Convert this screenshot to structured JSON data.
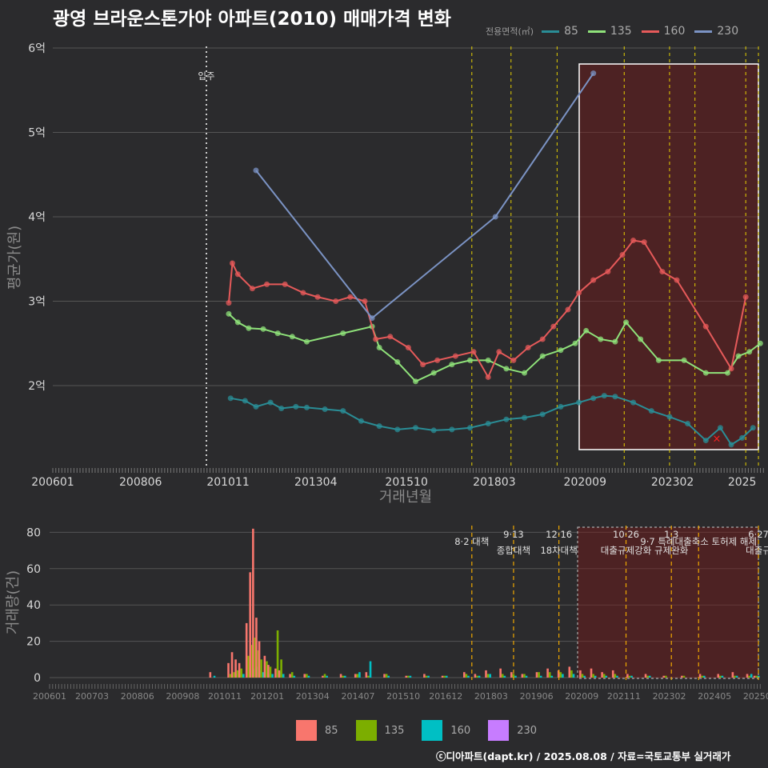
{
  "title": "광영 브라운스톤가야 아파트(2010) 매매가격 변화",
  "legend_title": "전용면적(㎡)",
  "series_colors": {
    "85": "#2a8d96",
    "135": "#8fe27a",
    "160": "#e65a5a",
    "230": "#7b93c4"
  },
  "volume_colors": {
    "85": "#f8766d",
    "135": "#7cae00",
    "160": "#00bfc4",
    "230": "#c77cff"
  },
  "move_in_label": "입주",
  "credit": "ⓒ디아파트(dapt.kr) / 2025.08.08 / 자료=국토교통부 실거래가",
  "chart_data": [
    {
      "type": "line",
      "xlabel": "거래년월",
      "ylabel": "평균가(원)",
      "y_ticks": [
        {
          "v": 2,
          "label": "2억"
        },
        {
          "v": 3,
          "label": "3억"
        },
        {
          "v": 4,
          "label": "4억"
        },
        {
          "v": 5,
          "label": "5억"
        },
        {
          "v": 6,
          "label": "6억"
        }
      ],
      "x_ticks": [
        {
          "t": 2006.0,
          "label": "200601"
        },
        {
          "t": 2008.42,
          "label": "200806"
        },
        {
          "t": 2010.83,
          "label": "201011"
        },
        {
          "t": 2013.25,
          "label": "201304"
        },
        {
          "t": 2015.75,
          "label": "201510"
        },
        {
          "t": 2018.17,
          "label": "201803"
        },
        {
          "t": 2020.67,
          "label": "202009"
        },
        {
          "t": 2023.08,
          "label": "202302"
        },
        {
          "t": 2025.0,
          "label": "2025"
        }
      ],
      "series": [
        {
          "name": "85",
          "line": [
            [
              2010.9,
              1.85
            ],
            [
              2011.3,
              1.82
            ],
            [
              2011.6,
              1.75
            ],
            [
              2012.0,
              1.8
            ],
            [
              2012.3,
              1.73
            ],
            [
              2012.7,
              1.75
            ],
            [
              2013.0,
              1.74
            ],
            [
              2013.5,
              1.72
            ],
            [
              2014.0,
              1.7
            ],
            [
              2014.5,
              1.58
            ],
            [
              2015.0,
              1.52
            ],
            [
              2015.5,
              1.48
            ],
            [
              2016.0,
              1.5
            ],
            [
              2016.5,
              1.47
            ],
            [
              2017.0,
              1.48
            ],
            [
              2017.5,
              1.5
            ],
            [
              2018.0,
              1.55
            ],
            [
              2018.5,
              1.6
            ],
            [
              2019.0,
              1.62
            ],
            [
              2019.5,
              1.66
            ],
            [
              2020.0,
              1.75
            ],
            [
              2020.5,
              1.8
            ],
            [
              2020.9,
              1.85
            ],
            [
              2021.2,
              1.88
            ],
            [
              2021.5,
              1.87
            ],
            [
              2022.0,
              1.8
            ],
            [
              2022.5,
              1.7
            ],
            [
              2023.0,
              1.63
            ],
            [
              2023.5,
              1.55
            ],
            [
              2024.0,
              1.35
            ],
            [
              2024.4,
              1.5
            ],
            [
              2024.7,
              1.3
            ],
            [
              2025.0,
              1.38
            ],
            [
              2025.3,
              1.5
            ]
          ]
        },
        {
          "name": "135",
          "line": [
            [
              2010.85,
              2.85
            ],
            [
              2011.1,
              2.75
            ],
            [
              2011.4,
              2.68
            ],
            [
              2011.8,
              2.67
            ],
            [
              2012.2,
              2.62
            ],
            [
              2012.6,
              2.58
            ],
            [
              2013.0,
              2.52
            ],
            [
              2014.0,
              2.62
            ],
            [
              2014.8,
              2.7
            ],
            [
              2015.0,
              2.45
            ],
            [
              2015.5,
              2.28
            ],
            [
              2016.0,
              2.05
            ],
            [
              2016.5,
              2.15
            ],
            [
              2017.0,
              2.25
            ],
            [
              2017.5,
              2.3
            ],
            [
              2018.0,
              2.3
            ],
            [
              2018.5,
              2.2
            ],
            [
              2019.0,
              2.15
            ],
            [
              2019.5,
              2.35
            ],
            [
              2020.0,
              2.42
            ],
            [
              2020.4,
              2.5
            ],
            [
              2020.7,
              2.65
            ],
            [
              2021.1,
              2.55
            ],
            [
              2021.5,
              2.52
            ],
            [
              2021.8,
              2.75
            ],
            [
              2022.2,
              2.55
            ],
            [
              2022.7,
              2.3
            ],
            [
              2023.4,
              2.3
            ],
            [
              2024.0,
              2.15
            ],
            [
              2024.6,
              2.15
            ],
            [
              2024.9,
              2.35
            ],
            [
              2025.2,
              2.4
            ],
            [
              2025.5,
              2.5
            ]
          ]
        },
        {
          "name": "160",
          "line": [
            [
              2010.85,
              2.98
            ],
            [
              2010.95,
              3.45
            ],
            [
              2011.1,
              3.32
            ],
            [
              2011.5,
              3.15
            ],
            [
              2011.9,
              3.2
            ],
            [
              2012.4,
              3.2
            ],
            [
              2012.9,
              3.1
            ],
            [
              2013.3,
              3.05
            ],
            [
              2013.8,
              3.0
            ],
            [
              2014.2,
              3.05
            ],
            [
              2014.6,
              3.0
            ],
            [
              2014.9,
              2.55
            ],
            [
              2015.3,
              2.58
            ],
            [
              2015.8,
              2.45
            ],
            [
              2016.2,
              2.25
            ],
            [
              2016.6,
              2.3
            ],
            [
              2017.1,
              2.35
            ],
            [
              2017.6,
              2.4
            ],
            [
              2018.0,
              2.1
            ],
            [
              2018.3,
              2.4
            ],
            [
              2018.7,
              2.3
            ],
            [
              2019.1,
              2.45
            ],
            [
              2019.5,
              2.55
            ],
            [
              2019.8,
              2.7
            ],
            [
              2020.2,
              2.9
            ],
            [
              2020.5,
              3.1
            ],
            [
              2020.9,
              3.25
            ],
            [
              2021.3,
              3.35
            ],
            [
              2021.7,
              3.55
            ],
            [
              2022.0,
              3.72
            ],
            [
              2022.3,
              3.7
            ],
            [
              2022.8,
              3.35
            ],
            [
              2023.2,
              3.25
            ],
            [
              2024.0,
              2.7
            ],
            [
              2024.7,
              2.2
            ],
            [
              2025.1,
              3.05
            ]
          ]
        },
        {
          "name": "230",
          "line": [
            [
              2011.6,
              4.55
            ],
            [
              2014.8,
              2.8
            ],
            [
              2018.2,
              4.0
            ],
            [
              2020.9,
              5.7
            ]
          ]
        }
      ],
      "highlight_mark": {
        "t": 2024.3,
        "v": 1.38,
        "symbol": "×"
      }
    },
    {
      "type": "bar",
      "ylabel": "거래량(건)",
      "y_ticks": [
        0,
        20,
        40,
        60,
        80
      ],
      "x_ticks": [
        {
          "t": 2006.0,
          "label": "200601"
        },
        {
          "t": 2007.17,
          "label": "200703"
        },
        {
          "t": 2008.42,
          "label": "200806"
        },
        {
          "t": 2009.67,
          "label": "200908"
        },
        {
          "t": 2010.83,
          "label": "201011"
        },
        {
          "t": 2012.0,
          "label": "201201"
        },
        {
          "t": 2013.25,
          "label": "201304"
        },
        {
          "t": 2014.5,
          "label": "201407"
        },
        {
          "t": 2015.75,
          "label": "201510"
        },
        {
          "t": 2016.92,
          "label": "201612"
        },
        {
          "t": 2018.17,
          "label": "201803"
        },
        {
          "t": 2019.42,
          "label": "201906"
        },
        {
          "t": 2020.67,
          "label": "202009"
        },
        {
          "t": 2021.83,
          "label": "202111"
        },
        {
          "t": 2023.08,
          "label": "202302"
        },
        {
          "t": 2024.33,
          "label": "202405"
        },
        {
          "t": 2025.5,
          "label": "20250"
        }
      ],
      "bars": [
        {
          "t": 2010.4,
          "v85": 3,
          "v135": 0,
          "v160": 1
        },
        {
          "t": 2010.9,
          "v85": 8,
          "v135": 2,
          "v160": 1
        },
        {
          "t": 2011.0,
          "v85": 14,
          "v135": 3,
          "v160": 2
        },
        {
          "t": 2011.1,
          "v85": 10,
          "v135": 4,
          "v160": 2
        },
        {
          "t": 2011.2,
          "v85": 8,
          "v135": 5,
          "v160": 2
        },
        {
          "t": 2011.4,
          "v85": 30,
          "v135": 12,
          "v160": 4
        },
        {
          "t": 2011.5,
          "v85": 58,
          "v135": 18,
          "v160": 5
        },
        {
          "t": 2011.58,
          "v85": 82,
          "v135": 22,
          "v160": 6
        },
        {
          "t": 2011.67,
          "v85": 33,
          "v135": 15,
          "v160": 4
        },
        {
          "t": 2011.75,
          "v85": 20,
          "v135": 10,
          "v160": 3
        },
        {
          "t": 2011.9,
          "v85": 12,
          "v135": 9,
          "v160": 2
        },
        {
          "t": 2012.0,
          "v85": 7,
          "v135": 6,
          "v160": 2
        },
        {
          "t": 2012.2,
          "v85": 5,
          "v135": 26,
          "v160": 3
        },
        {
          "t": 2012.3,
          "v85": 4,
          "v135": 10,
          "v160": 2
        },
        {
          "t": 2012.6,
          "v85": 2,
          "v135": 3,
          "v160": 1
        },
        {
          "t": 2013.0,
          "v85": 2,
          "v135": 2,
          "v160": 1
        },
        {
          "t": 2013.5,
          "v85": 1,
          "v135": 2,
          "v160": 1
        },
        {
          "t": 2014.0,
          "v85": 2,
          "v135": 1,
          "v160": 1
        },
        {
          "t": 2014.4,
          "v85": 2,
          "v135": 2,
          "v160": 3
        },
        {
          "t": 2014.7,
          "v85": 3,
          "v135": 1,
          "v160": 9
        },
        {
          "t": 2015.2,
          "v85": 2,
          "v135": 2,
          "v160": 1
        },
        {
          "t": 2015.8,
          "v85": 1,
          "v135": 1,
          "v160": 1
        },
        {
          "t": 2016.3,
          "v85": 2,
          "v135": 1,
          "v160": 1
        },
        {
          "t": 2016.8,
          "v85": 1,
          "v135": 1,
          "v160": 1
        },
        {
          "t": 2017.4,
          "v85": 3,
          "v135": 2,
          "v160": 1
        },
        {
          "t": 2017.7,
          "v85": 2,
          "v135": 1,
          "v160": 1
        },
        {
          "t": 2018.0,
          "v85": 4,
          "v135": 2,
          "v160": 2
        },
        {
          "t": 2018.4,
          "v85": 5,
          "v135": 2,
          "v160": 1
        },
        {
          "t": 2018.7,
          "v85": 3,
          "v135": 2,
          "v160": 1
        },
        {
          "t": 2019.0,
          "v85": 2,
          "v135": 2,
          "v160": 1
        },
        {
          "t": 2019.4,
          "v85": 3,
          "v135": 3,
          "v160": 1
        },
        {
          "t": 2019.7,
          "v85": 5,
          "v135": 3,
          "v160": 1
        },
        {
          "t": 2020.0,
          "v85": 4,
          "v135": 3,
          "v160": 2
        },
        {
          "t": 2020.3,
          "v85": 6,
          "v135": 4,
          "v160": 2
        },
        {
          "t": 2020.6,
          "v85": 4,
          "v135": 2,
          "v160": 1
        },
        {
          "t": 2020.9,
          "v85": 5,
          "v135": 2,
          "v160": 1
        },
        {
          "t": 2021.2,
          "v85": 3,
          "v135": 2,
          "v160": 1
        },
        {
          "t": 2021.5,
          "v85": 4,
          "v135": 2,
          "v160": 1
        },
        {
          "t": 2021.9,
          "v85": 2,
          "v135": 1,
          "v160": 1
        },
        {
          "t": 2022.4,
          "v85": 2,
          "v135": 1,
          "v160": 1
        },
        {
          "t": 2022.9,
          "v85": 1,
          "v135": 1,
          "v160": 0
        },
        {
          "t": 2023.4,
          "v85": 1,
          "v135": 1,
          "v160": 0
        },
        {
          "t": 2023.9,
          "v85": 2,
          "v135": 1,
          "v160": 1
        },
        {
          "t": 2024.4,
          "v85": 2,
          "v135": 1,
          "v160": 1
        },
        {
          "t": 2024.8,
          "v85": 3,
          "v135": 1,
          "v160": 1
        },
        {
          "t": 2025.2,
          "v85": 2,
          "v135": 1,
          "v160": 2
        },
        {
          "t": 2025.4,
          "v85": 1,
          "v135": 1,
          "v160": 1
        }
      ],
      "annotations": [
        {
          "t": 2017.55,
          "line1": "",
          "line2": "8·2 대책"
        },
        {
          "t": 2018.7,
          "line1": "9·13",
          "line2": "종합대책"
        },
        {
          "t": 2019.95,
          "line1": "12·16",
          "line2": "18차대책"
        },
        {
          "t": 2021.8,
          "line1": "10·26",
          "line2": "대출규제강화"
        },
        {
          "t": 2023.05,
          "line1": "1·3",
          "line2": "규제완화"
        },
        {
          "t": 2023.8,
          "line1": "",
          "line2": "9·7 특례대출축소 토허제 해제"
        },
        {
          "t": 2025.45,
          "line1": "6·27",
          "line2": "대출규"
        }
      ]
    }
  ]
}
